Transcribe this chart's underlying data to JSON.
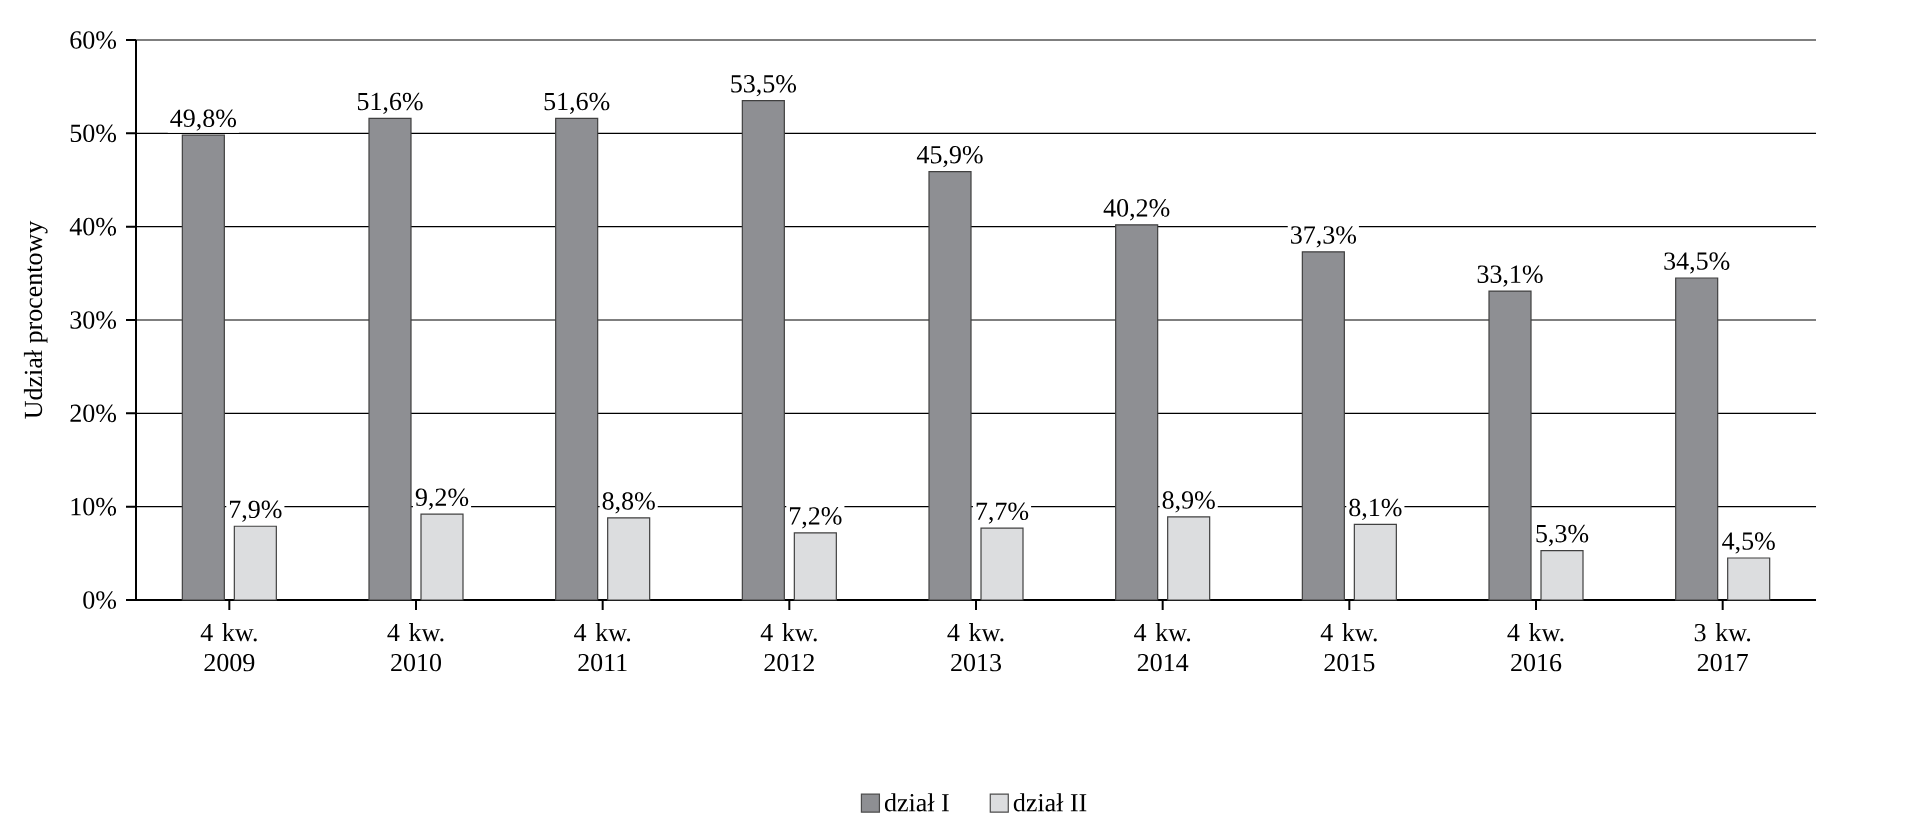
{
  "chart_data": {
    "type": "bar",
    "ylabel": "Udział procentowy",
    "categories": [
      "4 kw. 2009",
      "4 kw. 2010",
      "4 kw. 2011",
      "4 kw. 2012",
      "4 kw. 2013",
      "4 kw. 2014",
      "4 kw. 2015",
      "4 kw. 2016",
      "3 kw. 2017"
    ],
    "series": [
      {
        "name": "dział I",
        "color": "#8e8f93",
        "values": [
          49.8,
          51.6,
          51.6,
          53.5,
          45.9,
          40.2,
          37.3,
          33.1,
          34.5
        ],
        "value_labels": [
          "49,8%",
          "51,6%",
          "51,6%",
          "53,5%",
          "45,9%",
          "40,2%",
          "37,3%",
          "33,1%",
          "34,5%"
        ]
      },
      {
        "name": "dział II",
        "color": "#dcdddf",
        "values": [
          7.9,
          9.2,
          8.8,
          7.2,
          7.7,
          8.9,
          8.1,
          5.3,
          4.5
        ],
        "value_labels": [
          "7,9%",
          "9,2%",
          "8,8%",
          "7,2%",
          "7,7%",
          "8,9%",
          "8,1%",
          "5,3%",
          "4,5%"
        ]
      }
    ],
    "ylim": [
      0,
      60
    ],
    "yticks": [
      {
        "value": 0,
        "label": "0%"
      },
      {
        "value": 10,
        "label": "10%"
      },
      {
        "value": 20,
        "label": "20%"
      },
      {
        "value": 30,
        "label": "30%"
      },
      {
        "value": 40,
        "label": "40%"
      },
      {
        "value": 50,
        "label": "50%"
      },
      {
        "value": 60,
        "label": "60%"
      }
    ],
    "grid": "y",
    "legend": "bottom"
  }
}
